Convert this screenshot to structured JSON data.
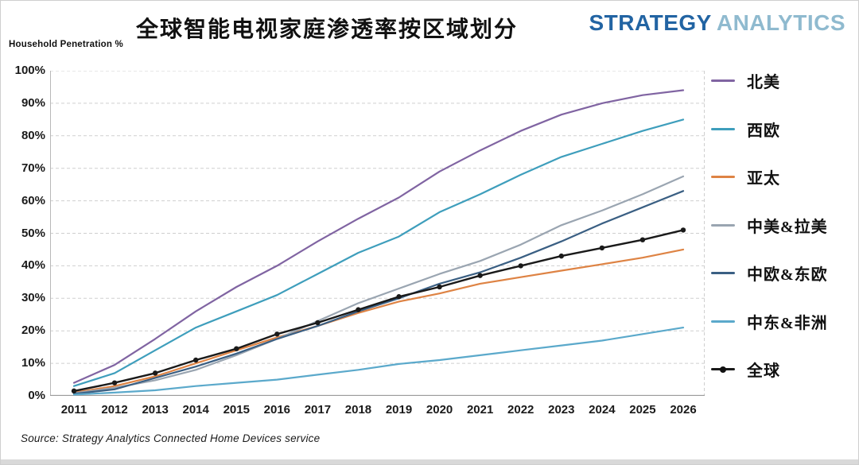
{
  "header": {
    "title": "全球智能电视家庭渗透率按区域划分",
    "logo_part1": "STRATEGY",
    "logo_part2": "ANALYTICS",
    "y_axis_title": "Household Penetration %"
  },
  "footer": {
    "source": "Source: Strategy Analytics Connected Home Devices service"
  },
  "colors": {
    "logo_dark_blue": "#2264A3",
    "logo_light_blue": "#8FBACF",
    "gridline": "#cfcfcf",
    "axis_line": "#9a9a9a",
    "bottom_strip": "#D9D9D9"
  },
  "chart_data": {
    "type": "line",
    "x": [
      2011,
      2012,
      2013,
      2014,
      2015,
      2016,
      2017,
      2018,
      2019,
      2020,
      2021,
      2022,
      2023,
      2024,
      2025,
      2026
    ],
    "ylim": [
      0,
      100
    ],
    "y_tick_step": 10,
    "y_tick_suffix": "%",
    "grid": true,
    "legend_position": "right",
    "xlabel": "",
    "ylabel": "Household Penetration %",
    "series": [
      {
        "key": "north-america",
        "name": "北美",
        "color": "#8064A2",
        "marker": false,
        "values": [
          4,
          9.5,
          17.5,
          26,
          33.5,
          40,
          47.5,
          54.5,
          61,
          69,
          75.5,
          81.5,
          86.5,
          90,
          92.5,
          94
        ]
      },
      {
        "key": "western-europe",
        "name": "西欧",
        "color": "#3E9EBC",
        "marker": false,
        "values": [
          3,
          7,
          14,
          21,
          26,
          31,
          37.5,
          44,
          49,
          56.5,
          62,
          68,
          73.5,
          77.5,
          81.5,
          85
        ]
      },
      {
        "key": "asia-pacific",
        "name": "亚太",
        "color": "#DE8344",
        "marker": false,
        "values": [
          1,
          3,
          6,
          10,
          14,
          18,
          21.5,
          25.5,
          29,
          31.5,
          34.5,
          36.5,
          38.5,
          40.5,
          42.5,
          45
        ]
      },
      {
        "key": "central-latin-america",
        "name": "中美&拉美",
        "color": "#9AA5B1",
        "marker": false,
        "values": [
          0.8,
          2.5,
          4.8,
          8,
          12.5,
          17.5,
          23,
          28.5,
          33,
          37.5,
          41.5,
          46.5,
          52.5,
          57,
          62,
          67.5
        ]
      },
      {
        "key": "central-eastern-europe",
        "name": "中欧&东欧",
        "color": "#3A5F83",
        "marker": false,
        "values": [
          0.6,
          2,
          5.5,
          9,
          13,
          17.5,
          21.5,
          26,
          30,
          34.5,
          38,
          42.5,
          47.5,
          53,
          58,
          63
        ]
      },
      {
        "key": "middle-east-africa",
        "name": "中东&非洲",
        "color": "#5BA9CB",
        "marker": false,
        "values": [
          0.4,
          1,
          1.7,
          3,
          4,
          5,
          6.5,
          8,
          9.8,
          11,
          12.5,
          14,
          15.5,
          17,
          19,
          21
        ]
      },
      {
        "key": "global",
        "name": "全球",
        "color": "#1A1A1A",
        "marker": true,
        "values": [
          1.5,
          4,
          7,
          11,
          14.5,
          19,
          22.5,
          26.5,
          30.5,
          33.5,
          37,
          40,
          43,
          45.5,
          48,
          51
        ]
      }
    ]
  }
}
